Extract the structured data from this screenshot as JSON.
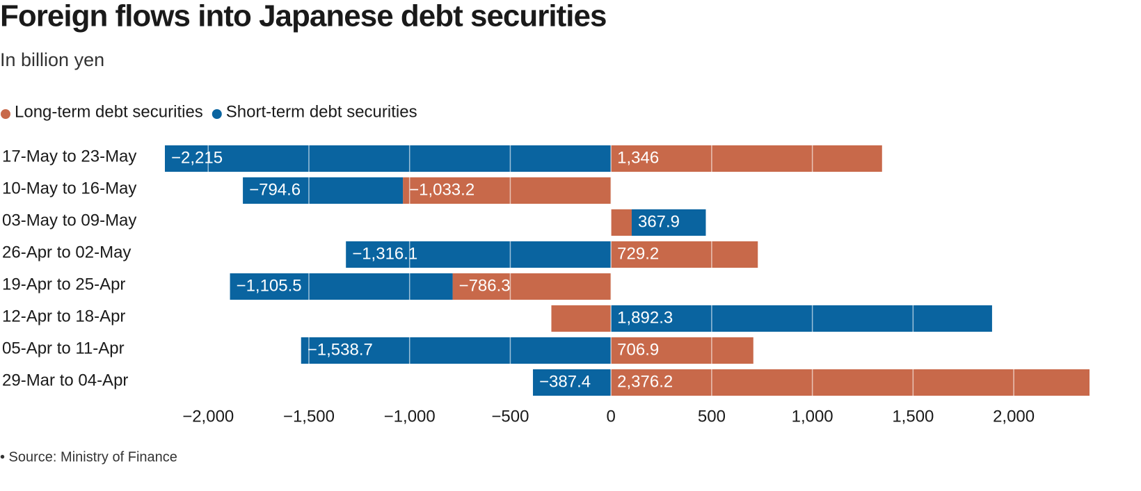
{
  "chart_data": {
    "type": "bar",
    "orientation": "horizontal",
    "stacked": true,
    "title": "Foreign flows into Japanese debt securities",
    "subtitle": "In billion yen",
    "source": "• Source: Ministry of Finance",
    "categories": [
      "17-May to 23-May",
      "10-May to 16-May",
      "03-May to 09-May",
      "26-Apr to 02-May",
      "19-Apr to 25-Apr",
      "12-Apr to 18-Apr",
      "05-Apr to 11-Apr",
      "29-Mar to 04-Apr"
    ],
    "series": [
      {
        "name": "Long-term debt securities",
        "color": "#c8694a",
        "values": [
          1346,
          -1033.2,
          103,
          729.2,
          -786.3,
          -296,
          706.9,
          2376.2
        ],
        "value_labels": [
          "1,346",
          "−1,033.2",
          null,
          "729.2",
          "−786.3",
          null,
          "706.9",
          "2,376.2"
        ]
      },
      {
        "name": "Short-term debt securities",
        "color": "#0a64a0",
        "values": [
          -2215,
          -794.6,
          367.9,
          -1316.1,
          -1105.5,
          1892.3,
          -1538.7,
          -387.4
        ],
        "value_labels": [
          "−2,215",
          "−794.6",
          "367.9",
          "−1,316.1",
          "−1,105.5",
          "1,892.3",
          "−1,538.7",
          "−387.4"
        ]
      }
    ],
    "xlim": [
      -2215,
      2376.2
    ],
    "xticks": [
      {
        "value": -2000,
        "label": "−2,000"
      },
      {
        "value": -1500,
        "label": "−1,500"
      },
      {
        "value": -1000,
        "label": "−1,000"
      },
      {
        "value": -500,
        "label": "−500"
      },
      0,
      500,
      {
        "value": 1000,
        "label": "1,000"
      },
      {
        "value": 1500,
        "label": "1,500"
      },
      {
        "value": 2000,
        "label": "2,000"
      }
    ],
    "grid": true,
    "legend": "top-left"
  }
}
